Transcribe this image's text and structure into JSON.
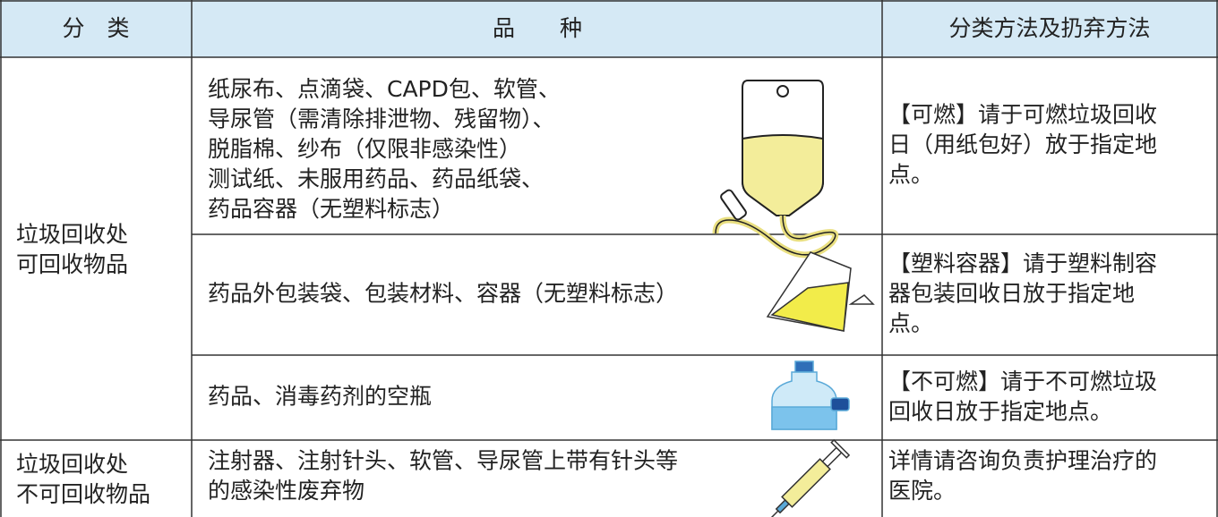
{
  "header": [
    "分　类",
    "品　　种",
    "分类方法及扔弃方法"
  ],
  "rows": [
    {
      "category": [
        "垃圾回收处",
        "可回收物品"
      ],
      "items": [
        {
          "kind": [
            "纸尿布、点滴袋、CAPD包、软管、",
            "导尿管（需清除排泄物、残留物）、",
            "脱脂棉、纱布（仅限非感染性）",
            "测试纸、未服用药品、药品纸袋、",
            "药品容器（无塑料标志）"
          ],
          "method": [
            "【可燃】请于可燃垃圾回收",
            "日（用纸包好）放于指定地",
            "点。"
          ]
        },
        {
          "kind": [
            "药品外包装袋、包装材料、容器（无塑料标志）"
          ],
          "method": [
            "【塑料容器】请于塑料制容",
            "器包装回收日放于指定地",
            "点。"
          ]
        },
        {
          "kind": [
            "药品、消毒药剂的空瓶"
          ],
          "method": [
            "【不可燃】请于不可燃垃圾",
            "回收日放于指定地点。"
          ]
        }
      ]
    },
    {
      "category": [
        "垃圾回收处",
        "不可回收物品"
      ],
      "items": [
        {
          "kind": [
            "注射器、注射针头、软管、导尿管上带有针头等",
            "的感染性废弃物"
          ],
          "method": [
            "详情请咨询负责护理治疗的",
            "医院。"
          ]
        }
      ]
    }
  ]
}
